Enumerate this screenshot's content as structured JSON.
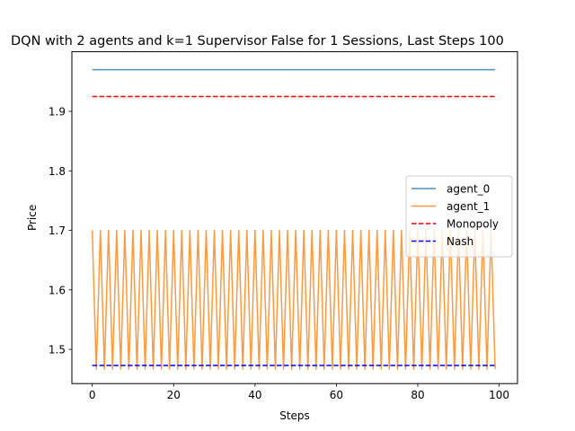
{
  "chart_data": {
    "type": "line",
    "title": "DQN with 2 agents and k=1 Supervisor False for 1 Sessions, Last Steps 100",
    "xlabel": "Steps",
    "ylabel": "Price",
    "xlim": [
      -5,
      104.5
    ],
    "ylim": [
      1.4425,
      2.0002
    ],
    "x_ticks": [
      0,
      20,
      40,
      60,
      80,
      100
    ],
    "y_ticks": [
      1.5,
      1.6,
      1.7,
      1.8,
      1.9
    ],
    "x_tick_labels": [
      "0",
      "20",
      "40",
      "60",
      "80",
      "100"
    ],
    "y_tick_labels": [
      "1.5",
      "1.6",
      "1.7",
      "1.8",
      "1.9"
    ],
    "grid": false,
    "legend_position": "center-right",
    "series": [
      {
        "name": "agent_0",
        "style": "solid",
        "color": "#1f77b4",
        "alpha": 0.8,
        "description": "constant",
        "x_range": [
          0,
          99
        ],
        "value": 1.97
      },
      {
        "name": "agent_1",
        "style": "solid",
        "color": "#ff7f0e",
        "alpha": 0.8,
        "description": "alternating",
        "x_range": [
          0,
          99
        ],
        "high": 1.7,
        "low": 1.467
      },
      {
        "name": "Monopoly",
        "style": "dashed",
        "color": "#ff0000",
        "x_range": [
          0,
          99
        ],
        "value": 1.925
      },
      {
        "name": "Nash",
        "style": "dashed",
        "color": "#0000ff",
        "x_range": [
          0,
          99
        ],
        "value": 1.473
      }
    ]
  }
}
